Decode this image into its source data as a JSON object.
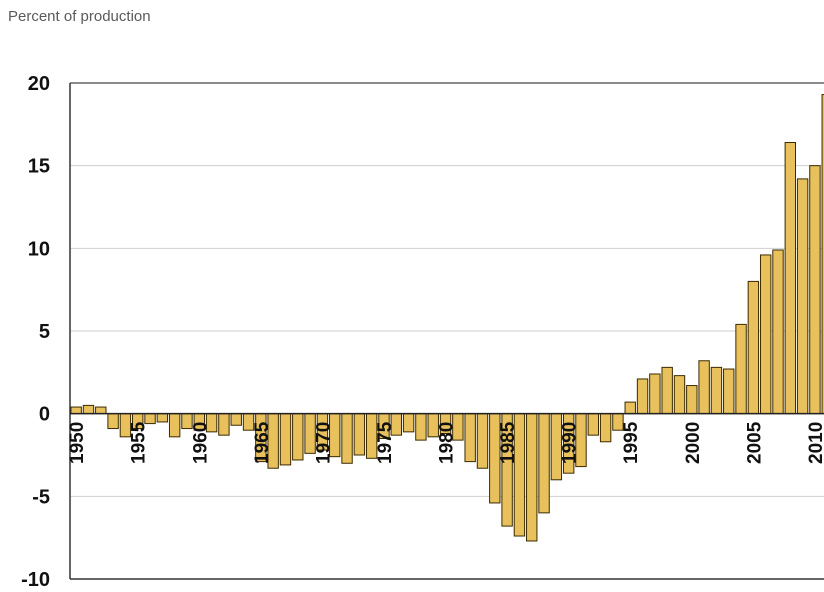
{
  "chart_data": {
    "type": "bar",
    "ylabel": "Percent of production",
    "xlabel": "",
    "ylim": [
      -10,
      20
    ],
    "yticks": [
      20,
      15,
      10,
      5,
      0,
      -5,
      -10
    ],
    "grid": true,
    "bar_color": "#e8c15c",
    "bar_edge_color": "#3a2a00",
    "x": [
      1950,
      1951,
      1952,
      1953,
      1954,
      1955,
      1956,
      1957,
      1958,
      1959,
      1960,
      1961,
      1962,
      1963,
      1964,
      1965,
      1966,
      1967,
      1968,
      1969,
      1970,
      1971,
      1972,
      1973,
      1974,
      1975,
      1976,
      1977,
      1978,
      1979,
      1980,
      1981,
      1982,
      1983,
      1984,
      1985,
      1986,
      1987,
      1988,
      1989,
      1990,
      1991,
      1992,
      1993,
      1994,
      1995,
      1996,
      1997,
      1998,
      1999,
      2000,
      2001,
      2002,
      2003,
      2004,
      2005,
      2006,
      2007,
      2008,
      2009,
      2010,
      2011
    ],
    "values": [
      0.4,
      0.5,
      0.4,
      -0.9,
      -1.4,
      -0.9,
      -0.6,
      -0.5,
      -1.4,
      -0.9,
      -1.0,
      -1.1,
      -1.3,
      -0.7,
      -1.0,
      -2.9,
      -3.3,
      -3.1,
      -2.8,
      -2.4,
      -2.2,
      -2.6,
      -3.0,
      -2.5,
      -2.7,
      -1.5,
      -1.3,
      -1.1,
      -1.6,
      -1.4,
      -1.2,
      -1.6,
      -2.9,
      -3.3,
      -5.4,
      -6.8,
      -7.4,
      -7.7,
      -6.0,
      -4.0,
      -3.6,
      -3.2,
      -1.3,
      -1.7,
      -1.0,
      0.7,
      2.1,
      2.4,
      2.8,
      2.3,
      1.7,
      3.2,
      2.8,
      2.7,
      5.4,
      8.0,
      9.6,
      9.9,
      16.4,
      14.2,
      15.0,
      19.3
    ],
    "xtick_labels": [
      "1950",
      "1955",
      "1960",
      "1965",
      "1970",
      "1975",
      "1980",
      "1985",
      "1990",
      "1995",
      "2000",
      "2005",
      "2010"
    ]
  }
}
